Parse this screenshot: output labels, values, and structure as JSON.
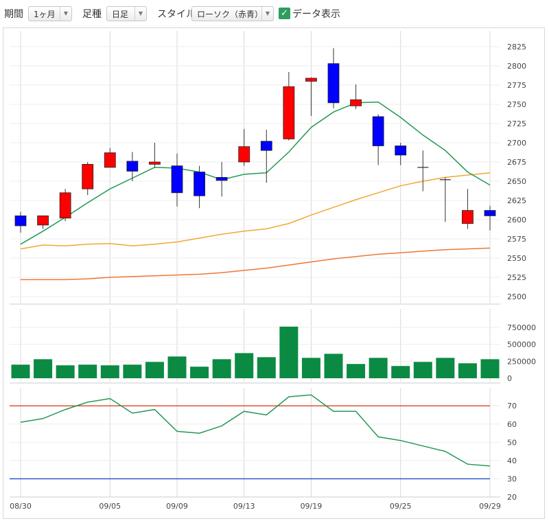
{
  "toolbar": {
    "period_label": "期間",
    "period_value": "1ヶ月",
    "bar_label": "足種",
    "bar_value": "日足",
    "style_label": "スタイル",
    "style_value": "ローソク（赤青）",
    "data_toggle_label": "データ表示",
    "data_toggle_checked": true
  },
  "chart_data": [
    {
      "type": "candlestick",
      "x_labels": [
        "08/30",
        "09/05",
        "09/09",
        "09/13",
        "09/19",
        "09/25",
        "09/29"
      ],
      "ylim": [
        2500,
        2825
      ],
      "yticks": [
        2500,
        2525,
        2550,
        2575,
        2600,
        2625,
        2650,
        2675,
        2700,
        2725,
        2750,
        2775,
        2800,
        2825
      ],
      "up_color": "#ff0000",
      "down_color": "#0000ff",
      "candles": [
        {
          "o": 2605,
          "h": 2610,
          "l": 2583,
          "c": 2592
        },
        {
          "o": 2593,
          "h": 2605,
          "l": 2588,
          "c": 2605
        },
        {
          "o": 2602,
          "h": 2640,
          "l": 2598,
          "c": 2635
        },
        {
          "o": 2640,
          "h": 2675,
          "l": 2632,
          "c": 2672
        },
        {
          "o": 2668,
          "h": 2693,
          "l": 2668,
          "c": 2687
        },
        {
          "o": 2676,
          "h": 2688,
          "l": 2650,
          "c": 2663
        },
        {
          "o": 2672,
          "h": 2700,
          "l": 2668,
          "c": 2675
        },
        {
          "o": 2670,
          "h": 2686,
          "l": 2617,
          "c": 2635
        },
        {
          "o": 2662,
          "h": 2670,
          "l": 2615,
          "c": 2631
        },
        {
          "o": 2655,
          "h": 2675,
          "l": 2630,
          "c": 2651
        },
        {
          "o": 2675,
          "h": 2718,
          "l": 2670,
          "c": 2695
        },
        {
          "o": 2702,
          "h": 2717,
          "l": 2648,
          "c": 2690
        },
        {
          "o": 2705,
          "h": 2792,
          "l": 2703,
          "c": 2773
        },
        {
          "o": 2780,
          "h": 2785,
          "l": 2735,
          "c": 2784
        },
        {
          "o": 2803,
          "h": 2823,
          "l": 2745,
          "c": 2752
        },
        {
          "o": 2748,
          "h": 2776,
          "l": 2744,
          "c": 2756
        },
        {
          "o": 2734,
          "h": 2737,
          "l": 2671,
          "c": 2696
        },
        {
          "o": 2696,
          "h": 2700,
          "l": 2671,
          "c": 2684
        },
        {
          "o": 2668,
          "h": 2690,
          "l": 2637,
          "c": 2668
        },
        {
          "o": 2652,
          "h": 2655,
          "l": 2597,
          "c": 2652
        },
        {
          "o": 2595,
          "h": 2640,
          "l": 2588,
          "c": 2612
        },
        {
          "o": 2612,
          "h": 2618,
          "l": 2586,
          "c": 2605
        }
      ],
      "ma_short": [
        2568,
        2585,
        2603,
        2622,
        2640,
        2654,
        2668,
        2667,
        2662,
        2652,
        2659,
        2661,
        2688,
        2720,
        2740,
        2752,
        2753,
        2733,
        2710,
        2690,
        2662,
        2645
      ],
      "ma_short_color": "#229955",
      "ma_mid": [
        2562,
        2567,
        2566,
        2568,
        2569,
        2566,
        2568,
        2571,
        2576,
        2581,
        2585,
        2588,
        2595,
        2606,
        2616,
        2626,
        2635,
        2644,
        2650,
        2655,
        2658,
        2661
      ],
      "ma_mid_color": "#f0a830",
      "ma_long": [
        2522,
        2522,
        2522,
        2523,
        2525,
        2526,
        2527,
        2528,
        2529,
        2531,
        2534,
        2537,
        2541,
        2545,
        2549,
        2552,
        2555,
        2557,
        2559,
        2561,
        2562,
        2563
      ],
      "ma_long_color": "#ee7733"
    },
    {
      "type": "bar",
      "yticks": [
        0,
        250000,
        500000,
        750000
      ],
      "ytick_labels": [
        "0",
        "250000",
        "500000",
        "750000"
      ],
      "ylim": [
        0,
        900000
      ],
      "color": "#0b8a43",
      "values": [
        200000,
        280000,
        190000,
        200000,
        190000,
        200000,
        240000,
        320000,
        170000,
        280000,
        370000,
        310000,
        760000,
        300000,
        360000,
        210000,
        300000,
        180000,
        240000,
        300000,
        220000,
        280000
      ]
    },
    {
      "type": "line",
      "yticks": [
        20,
        30,
        40,
        50,
        60,
        70
      ],
      "ylim": [
        20,
        78
      ],
      "values": [
        61,
        63,
        68,
        72,
        74,
        66,
        68,
        56,
        55,
        59,
        67,
        65,
        75,
        76,
        67,
        67,
        53,
        51,
        48,
        45,
        38,
        37
      ],
      "line_color": "#229955",
      "upper_level": 70,
      "upper_color": "#dd5533",
      "lower_level": 30,
      "lower_color": "#3355cc"
    }
  ]
}
